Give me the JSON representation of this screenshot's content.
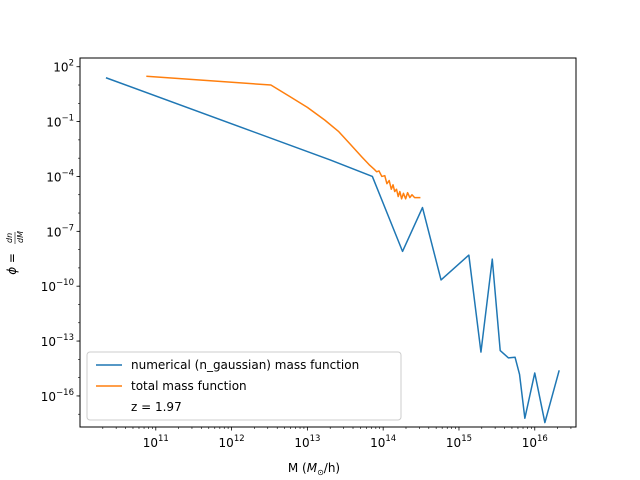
{
  "chart_data": {
    "type": "line",
    "xscale": "log",
    "yscale": "log",
    "xlabel_base": "M (",
    "xlabel_sym": "M",
    "xlabel_sub": "⊙",
    "xlabel_tail": "/h)",
    "ylabel_lhs": "ϕ = ",
    "ylabel_num": "dn",
    "ylabel_den": "dM",
    "xlim": [
      10000000000.0,
      3.5e+16
    ],
    "ylim": [
      2e-18,
      300
    ],
    "xticks": [
      {
        "value": 100000000000.0,
        "base": "10",
        "exp": "11"
      },
      {
        "value": 1000000000000.0,
        "base": "10",
        "exp": "12"
      },
      {
        "value": 10000000000000.0,
        "base": "10",
        "exp": "13"
      },
      {
        "value": 100000000000000.0,
        "base": "10",
        "exp": "14"
      },
      {
        "value": 1000000000000000.0,
        "base": "10",
        "exp": "15"
      },
      {
        "value": 1e+16,
        "base": "10",
        "exp": "16"
      }
    ],
    "yticks": [
      {
        "value": 100.0,
        "base": "10",
        "exp": "2"
      },
      {
        "value": 0.1,
        "base": "10",
        "exp": "−1"
      },
      {
        "value": 0.0001,
        "base": "10",
        "exp": "−4"
      },
      {
        "value": 1e-07,
        "base": "10",
        "exp": "−7"
      },
      {
        "value": 1e-10,
        "base": "10",
        "exp": "−10"
      },
      {
        "value": 1e-13,
        "base": "10",
        "exp": "−13"
      },
      {
        "value": 1e-16,
        "base": "10",
        "exp": "−16"
      }
    ],
    "series": [
      {
        "name": "numerical (n_gaussian) mass function",
        "color": "#1f77b4",
        "x": [
          22000000000.0,
          20000000000000.0,
          72000000000000.0,
          180000000000000.0,
          330000000000000.0,
          580000000000000.0,
          1350000000000000.0,
          1950000000000000.0,
          2750000000000000.0,
          3500000000000000.0,
          4500000000000000.0,
          5500000000000000.0,
          6300000000000000.0,
          7400000000000000.0,
          1e+16,
          1.36e+16,
          2.1e+16
        ],
        "y": [
          25,
          0.0008,
          0.0001,
          8e-09,
          2e-06,
          2.2e-10,
          5e-09,
          2.5e-14,
          3e-09,
          3e-14,
          1.2e-14,
          1.3e-14,
          1.5e-15,
          6e-18,
          1.8e-15,
          3.5e-18,
          2.5e-15
        ]
      },
      {
        "name": "total mass function",
        "color": "#ff7f0e",
        "x": [
          75000000000.0,
          3300000000000.0,
          6000000000000.0,
          10000000000000.0,
          17000000000000.0,
          26000000000000.0,
          38000000000000.0,
          52000000000000.0,
          65000000000000.0,
          76000000000000.0,
          82000000000000.0,
          88000000000000.0,
          96000000000000.0,
          105000000000000.0,
          112000000000000.0,
          120000000000000.0,
          128000000000000.0,
          135000000000000.0,
          142000000000000.0,
          150000000000000.0,
          158000000000000.0,
          166000000000000.0,
          175000000000000.0,
          185000000000000.0,
          198000000000000.0,
          210000000000000.0,
          225000000000000.0,
          240000000000000.0,
          260000000000000.0,
          280000000000000.0,
          310000000000000.0
        ],
        "y": [
          30,
          10,
          2.2,
          0.6,
          0.12,
          0.028,
          0.005,
          0.0012,
          0.00045,
          0.00025,
          0.00018,
          0.0002,
          0.0001,
          0.00011,
          4e-05,
          6e-05,
          2e-05,
          3.5e-05,
          1.5e-05,
          2e-05,
          8e-06,
          1.5e-05,
          6e-06,
          1.2e-05,
          6e-06,
          1.3e-05,
          7e-06,
          1e-05,
          7e-06,
          7e-06,
          7e-06
        ]
      }
    ],
    "annotation": "z = 1.97",
    "legend_position": "lower-left",
    "grid": false
  }
}
